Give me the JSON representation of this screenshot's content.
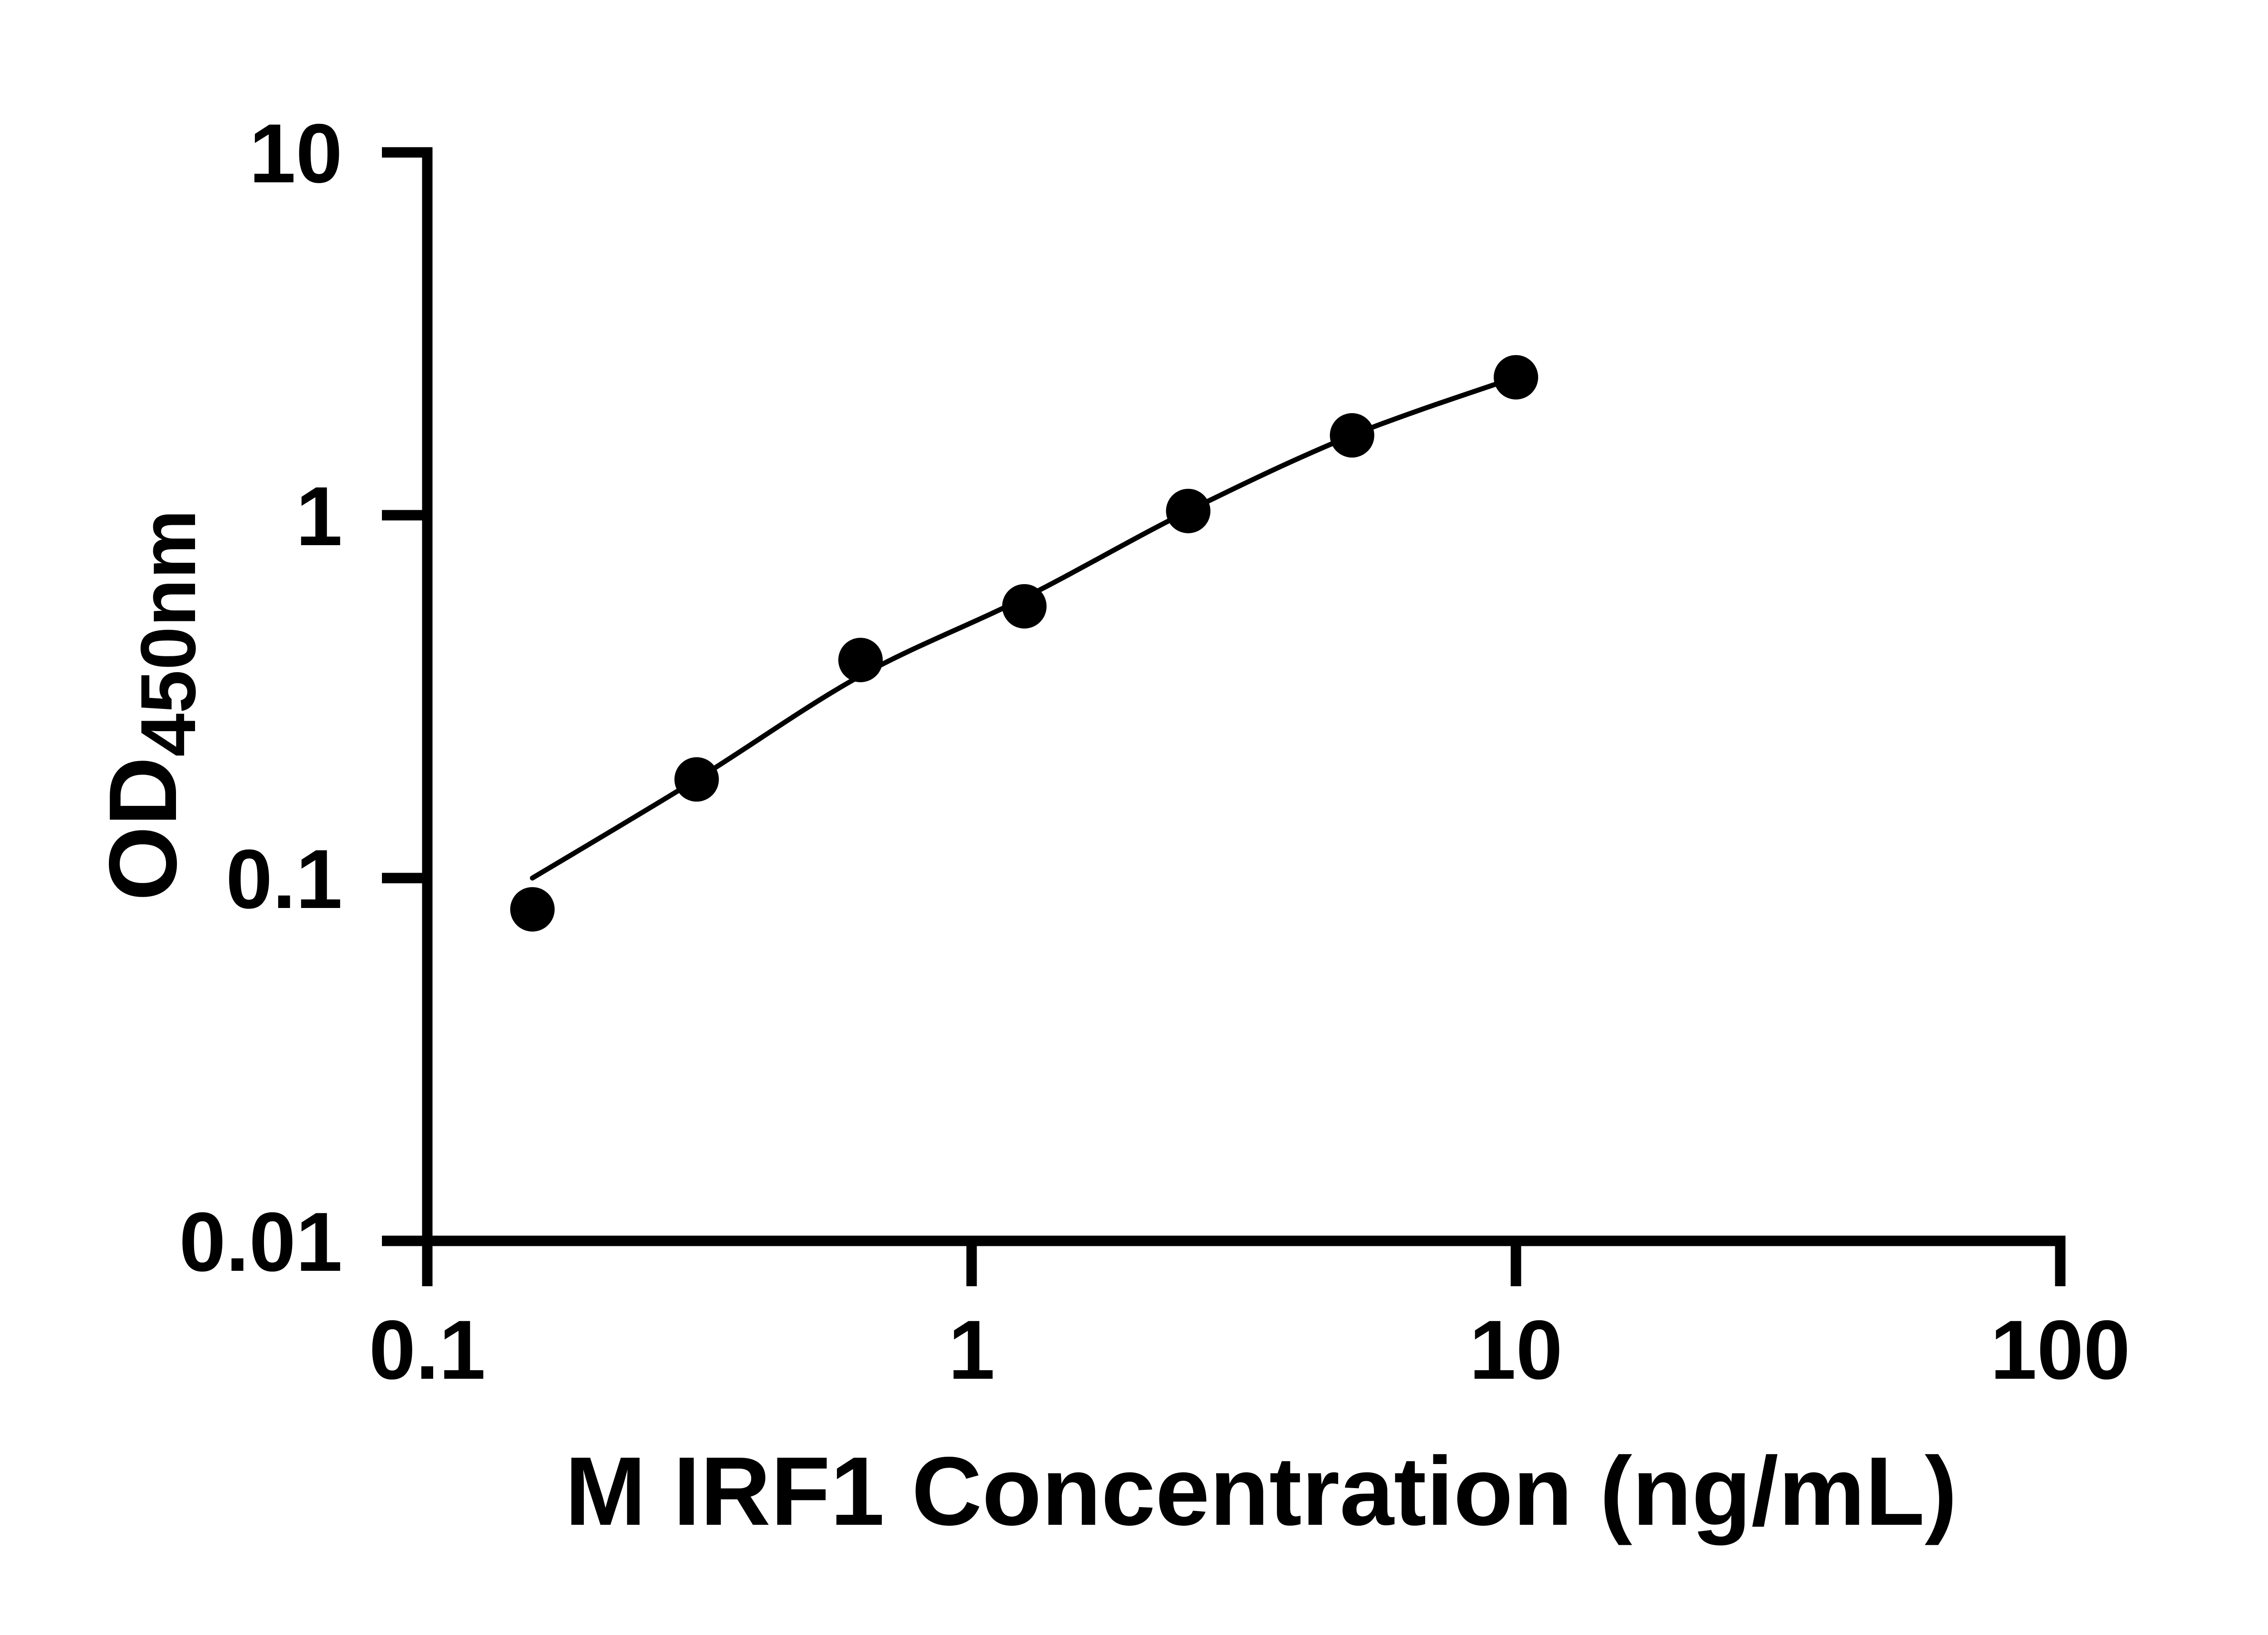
{
  "chart_data": {
    "type": "scatter",
    "title": "",
    "xlabel": "M IRF1 Concentration (ng/mL)",
    "ylabel_main": "OD",
    "ylabel_sub": "450nm",
    "x_scale": "log",
    "y_scale": "log",
    "xlim": [
      0.1,
      100
    ],
    "ylim": [
      0.01,
      10
    ],
    "grid": false,
    "legend": "none",
    "x_ticks": [
      {
        "value": 0.1,
        "label": "0.1"
      },
      {
        "value": 1,
        "label": "1"
      },
      {
        "value": 10,
        "label": "10"
      },
      {
        "value": 100,
        "label": "100"
      }
    ],
    "y_ticks": [
      {
        "value": 0.01,
        "label": "0.01"
      },
      {
        "value": 0.1,
        "label": "0.1"
      },
      {
        "value": 1,
        "label": "1"
      },
      {
        "value": 10,
        "label": "10"
      }
    ],
    "points": [
      {
        "conc": 0.156,
        "od": 0.082
      },
      {
        "conc": 0.3125,
        "od": 0.187
      },
      {
        "conc": 0.625,
        "od": 0.399
      },
      {
        "conc": 1.25,
        "od": 0.561
      },
      {
        "conc": 2.5,
        "od": 1.027
      },
      {
        "conc": 5,
        "od": 1.66
      },
      {
        "conc": 10,
        "od": 2.4
      }
    ],
    "fit_curve": [
      {
        "conc": 0.156,
        "od": 0.1
      },
      {
        "conc": 0.3125,
        "od": 0.187
      },
      {
        "conc": 0.625,
        "od": 0.361
      },
      {
        "conc": 1.25,
        "od": 0.592
      },
      {
        "conc": 2.5,
        "od": 1.027
      },
      {
        "conc": 5,
        "od": 1.66
      },
      {
        "conc": 10,
        "od": 2.4
      }
    ],
    "colors": {
      "axis": "#000000",
      "line": "#000000",
      "marker": "#000000",
      "text": "#000000",
      "background": "#ffffff"
    }
  }
}
